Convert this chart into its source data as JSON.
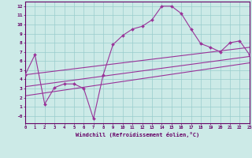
{
  "xlabel": "Windchill (Refroidissement éolien,°C)",
  "bg_color": "#cceae7",
  "line_color": "#993399",
  "grid_color": "#99cccc",
  "series1_x": [
    0,
    1,
    2,
    3,
    4,
    5,
    6,
    7,
    8,
    9,
    10,
    11,
    12,
    13,
    14,
    15,
    16,
    17,
    18,
    19,
    20,
    21,
    22,
    23
  ],
  "series1_y": [
    4.5,
    6.7,
    1.3,
    3.1,
    3.5,
    3.5,
    3.0,
    -0.3,
    4.5,
    7.8,
    8.8,
    9.5,
    9.8,
    10.5,
    12.0,
    12.0,
    11.2,
    9.5,
    7.9,
    7.5,
    7.0,
    8.0,
    8.2,
    6.7
  ],
  "series2_x": [
    0,
    23
  ],
  "series2_y": [
    4.5,
    7.5
  ],
  "series3_x": [
    0,
    23
  ],
  "series3_y": [
    3.2,
    6.5
  ],
  "series4_x": [
    0,
    23
  ],
  "series4_y": [
    2.2,
    5.8
  ],
  "xlim": [
    0,
    23
  ],
  "ylim": [
    -0.8,
    12.5
  ],
  "xticks": [
    0,
    1,
    2,
    3,
    4,
    5,
    6,
    7,
    8,
    9,
    10,
    11,
    12,
    13,
    14,
    15,
    16,
    17,
    18,
    19,
    20,
    21,
    22,
    23
  ],
  "yticks": [
    12,
    11,
    10,
    9,
    8,
    7,
    6,
    5,
    4,
    3,
    2,
    1,
    0
  ]
}
